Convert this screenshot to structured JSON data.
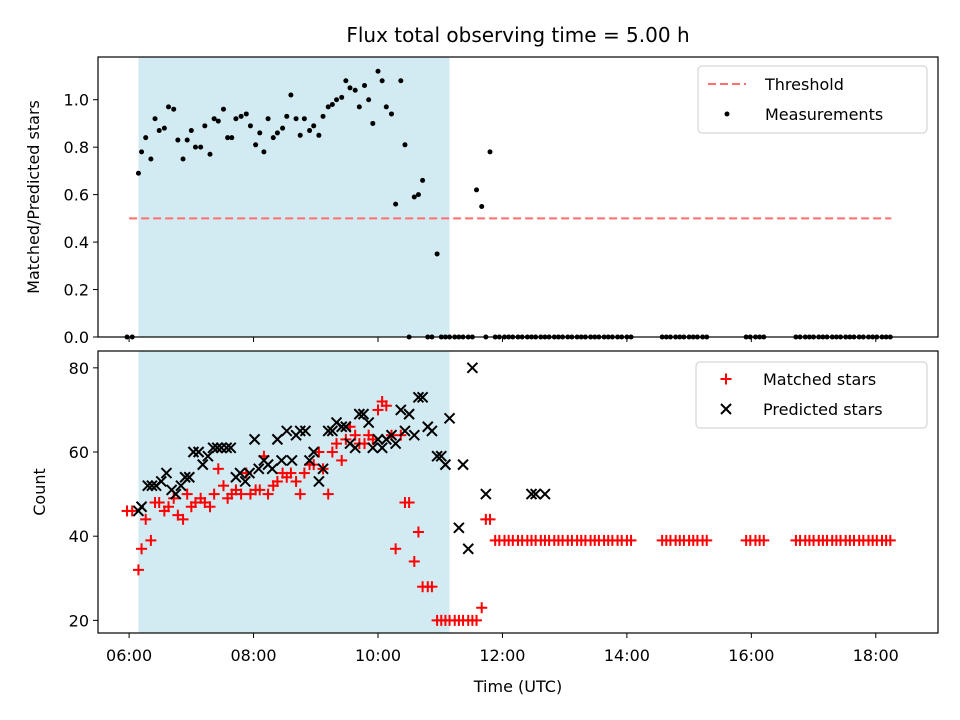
{
  "chart_data": [
    {
      "type": "scatter",
      "title": "Flux total observing time = 5.00 h",
      "xlabel": "",
      "ylabel": "Matched/Predicted stars",
      "xlim": [
        "05:30",
        "19:00"
      ],
      "ylim": [
        0,
        1.18
      ],
      "yticks": [
        0.0,
        0.2,
        0.4,
        0.6,
        0.8,
        1.0
      ],
      "xticks": [
        "06:00",
        "08:00",
        "10:00",
        "12:00",
        "14:00",
        "16:00",
        "18:00"
      ],
      "shaded_span": [
        "06:09",
        "11:09"
      ],
      "shaded_color": "#add8e6",
      "legend_position": "upper right",
      "threshold": {
        "name": "Threshold",
        "y": 0.5,
        "x_range": [
          "06:00",
          "18:15"
        ],
        "color": "#ff6f6f",
        "style": "dashed"
      },
      "series": [
        {
          "name": "Measurements",
          "color": "#000000",
          "marker": "dot",
          "x": [
            "05:58",
            "06:03",
            "06:09",
            "06:12",
            "06:16",
            "06:21",
            "06:25",
            "06:29",
            "06:34",
            "06:38",
            "06:43",
            "06:47",
            "06:52",
            "06:56",
            "07:00",
            "07:04",
            "07:09",
            "07:13",
            "07:18",
            "07:22",
            "07:26",
            "07:31",
            "07:35",
            "07:39",
            "07:43",
            "07:48",
            "07:53",
            "07:57",
            "08:02",
            "08:06",
            "08:10",
            "08:14",
            "08:19",
            "08:23",
            "08:28",
            "08:32",
            "08:36",
            "08:41",
            "08:45",
            "08:49",
            "08:54",
            "08:58",
            "09:03",
            "09:07",
            "09:12",
            "09:16",
            "09:20",
            "09:25",
            "09:29",
            "09:33",
            "09:38",
            "09:42",
            "09:47",
            "09:51",
            "09:55",
            "10:00",
            "10:04",
            "10:08",
            "10:13",
            "10:17",
            "10:22",
            "10:26",
            "10:30",
            "10:35",
            "10:39",
            "10:43",
            "10:48",
            "10:52",
            "10:57",
            "11:01",
            "11:05",
            "11:09",
            "11:14",
            "11:18",
            "11:22",
            "11:27",
            "11:31",
            "11:35",
            "11:40",
            "11:44",
            "11:48",
            "11:53",
            "11:57",
            "12:02",
            "12:06",
            "12:10",
            "12:15",
            "12:19",
            "12:24",
            "12:28",
            "12:32",
            "12:37",
            "12:41",
            "12:45",
            "12:50",
            "12:54",
            "12:58",
            "13:03",
            "13:07",
            "13:12",
            "13:16",
            "13:20",
            "13:25",
            "13:29",
            "13:33",
            "13:38",
            "13:42",
            "13:46",
            "13:51",
            "13:55",
            "14:00",
            "14:04",
            "14:34",
            "14:38",
            "14:42",
            "14:47",
            "14:51",
            "14:55",
            "15:00",
            "15:04",
            "15:08",
            "15:13",
            "15:17",
            "15:55",
            "15:59",
            "16:04",
            "16:08",
            "16:12",
            "16:43",
            "16:47",
            "16:52",
            "16:56",
            "17:00",
            "17:05",
            "17:09",
            "17:13",
            "17:18",
            "17:22",
            "17:26",
            "17:31",
            "17:35",
            "17:39",
            "17:44",
            "17:48",
            "17:53",
            "17:57",
            "18:01",
            "18:06",
            "18:10",
            "18:14"
          ],
          "y": [
            0.0,
            0.0,
            0.69,
            0.78,
            0.84,
            0.75,
            0.92,
            0.87,
            0.88,
            0.97,
            0.96,
            0.83,
            0.75,
            0.83,
            0.87,
            0.8,
            0.8,
            0.89,
            0.77,
            0.92,
            0.91,
            0.96,
            0.84,
            0.84,
            0.92,
            0.93,
            0.94,
            0.89,
            0.81,
            0.86,
            0.78,
            0.92,
            0.84,
            0.86,
            0.88,
            0.93,
            1.02,
            0.92,
            0.85,
            0.92,
            0.87,
            0.89,
            0.85,
            0.93,
            0.97,
            0.98,
            1.0,
            1.01,
            1.08,
            1.05,
            1.04,
            0.97,
            1.06,
            1.0,
            0.9,
            1.12,
            1.08,
            0.97,
            0.94,
            0.56,
            1.08,
            0.81,
            0.0,
            0.59,
            0.6,
            0.66,
            0.0,
            0.0,
            0.35,
            0.0,
            0.0,
            0.0,
            0.0,
            0.0,
            0.0,
            0.0,
            0.0,
            0.62,
            0.55,
            0.0,
            0.78,
            0.0,
            0.0,
            0.0,
            0.0,
            0.0,
            0.0,
            0.0,
            0.0,
            0.0,
            0.0,
            0.0,
            0.0,
            0.0,
            0.0,
            0.0,
            0.0,
            0.0,
            0.0,
            0.0,
            0.0,
            0.0,
            0.0,
            0.0,
            0.0,
            0.0,
            0.0,
            0.0,
            0.0,
            0.0,
            0.0,
            0.0,
            0.0,
            0.0,
            0.0,
            0.0,
            0.0,
            0.0,
            0.0,
            0.0,
            0.0,
            0.0,
            0.0,
            0.0,
            0.0,
            0.0,
            0.0,
            0.0,
            0.0,
            0.0,
            0.0,
            0.0,
            0.0,
            0.0,
            0.0,
            0.0,
            0.0,
            0.0,
            0.0,
            0.0,
            0.0,
            0.0,
            0.0,
            0.0,
            0.0,
            0.0,
            0.0,
            0.0,
            0.0,
            0.0
          ]
        }
      ]
    },
    {
      "type": "scatter",
      "title": "",
      "xlabel": "Time (UTC)",
      "ylabel": "Count",
      "xlim": [
        "05:30",
        "19:00"
      ],
      "ylim": [
        17,
        84
      ],
      "yticks": [
        20,
        40,
        60,
        80
      ],
      "xticks": [
        "06:00",
        "08:00",
        "10:00",
        "12:00",
        "14:00",
        "16:00",
        "18:00"
      ],
      "shaded_span": [
        "06:09",
        "11:09"
      ],
      "shaded_color": "#add8e6",
      "legend_position": "upper right",
      "series": [
        {
          "name": "Matched stars",
          "color": "#ff0000",
          "marker": "plus",
          "x": [
            "05:58",
            "06:03",
            "06:09",
            "06:12",
            "06:16",
            "06:21",
            "06:25",
            "06:29",
            "06:34",
            "06:38",
            "06:43",
            "06:47",
            "06:52",
            "06:56",
            "07:00",
            "07:04",
            "07:09",
            "07:13",
            "07:18",
            "07:22",
            "07:26",
            "07:31",
            "07:35",
            "07:39",
            "07:43",
            "07:48",
            "07:53",
            "07:57",
            "08:02",
            "08:06",
            "08:10",
            "08:14",
            "08:19",
            "08:23",
            "08:28",
            "08:32",
            "08:36",
            "08:41",
            "08:45",
            "08:49",
            "08:54",
            "08:58",
            "09:03",
            "09:07",
            "09:12",
            "09:16",
            "09:20",
            "09:25",
            "09:29",
            "09:33",
            "09:38",
            "09:42",
            "09:47",
            "09:51",
            "09:55",
            "10:00",
            "10:04",
            "10:08",
            "10:13",
            "10:17",
            "10:22",
            "10:26",
            "10:30",
            "10:35",
            "10:39",
            "10:43",
            "10:48",
            "10:52",
            "10:57",
            "11:01",
            "11:05",
            "11:09",
            "11:14",
            "11:18",
            "11:22",
            "11:27",
            "11:31",
            "11:35",
            "11:40",
            "11:44",
            "11:48",
            "11:53",
            "11:57",
            "12:02",
            "12:06",
            "12:10",
            "12:15",
            "12:19",
            "12:24",
            "12:28",
            "12:32",
            "12:37",
            "12:41",
            "12:45",
            "12:50",
            "12:54",
            "12:58",
            "13:03",
            "13:07",
            "13:12",
            "13:16",
            "13:20",
            "13:25",
            "13:29",
            "13:33",
            "13:38",
            "13:42",
            "13:46",
            "13:51",
            "13:55",
            "14:00",
            "14:04",
            "14:34",
            "14:38",
            "14:42",
            "14:47",
            "14:51",
            "14:55",
            "15:00",
            "15:04",
            "15:08",
            "15:13",
            "15:17",
            "15:55",
            "15:59",
            "16:04",
            "16:08",
            "16:12",
            "16:43",
            "16:47",
            "16:52",
            "16:56",
            "17:00",
            "17:05",
            "17:09",
            "17:13",
            "17:18",
            "17:22",
            "17:26",
            "17:31",
            "17:35",
            "17:39",
            "17:44",
            "17:48",
            "17:53",
            "17:57",
            "18:01",
            "18:06",
            "18:10",
            "18:14"
          ],
          "y": [
            46,
            46,
            32,
            37,
            44,
            39,
            48,
            48,
            46,
            47,
            49,
            45,
            44,
            50,
            47,
            48,
            49,
            48,
            47,
            50,
            56,
            52,
            49,
            50,
            51,
            50,
            55,
            50,
            51,
            51,
            59,
            50,
            52,
            53,
            55,
            54,
            55,
            53,
            50,
            55,
            57,
            57,
            60,
            56,
            50,
            60,
            62,
            58,
            63,
            66,
            64,
            62,
            62,
            64,
            63,
            70,
            72,
            71,
            64,
            37,
            64,
            48,
            48,
            34,
            41,
            28,
            28,
            28,
            20,
            20,
            20,
            20,
            20,
            20,
            20,
            20,
            20,
            20,
            23,
            44,
            44,
            39,
            39,
            39,
            39,
            39,
            39,
            39,
            39,
            39,
            39,
            39,
            39,
            39,
            39,
            39,
            39,
            39,
            39,
            39,
            39,
            39,
            39,
            39,
            39,
            39,
            39,
            39,
            39,
            39,
            39,
            39,
            39,
            39,
            39,
            39,
            39,
            39,
            39,
            39,
            39,
            39,
            39,
            39,
            39,
            39,
            39,
            39,
            39,
            39,
            39,
            39,
            39,
            39,
            39,
            39,
            39,
            39,
            39,
            39,
            39,
            39,
            39,
            39,
            39,
            39,
            39,
            39,
            39,
            39
          ]
        },
        {
          "name": "Predicted stars",
          "color": "#000000",
          "marker": "x",
          "x": [
            "06:09",
            "06:12",
            "06:18",
            "06:22",
            "06:26",
            "06:31",
            "06:36",
            "06:41",
            "06:45",
            "06:50",
            "06:54",
            "06:58",
            "07:02",
            "07:07",
            "07:11",
            "07:16",
            "07:21",
            "07:25",
            "07:29",
            "07:34",
            "07:38",
            "07:43",
            "07:47",
            "07:52",
            "07:56",
            "08:01",
            "08:05",
            "08:10",
            "08:14",
            "08:18",
            "08:23",
            "08:27",
            "08:32",
            "08:37",
            "08:41",
            "08:45",
            "08:50",
            "08:54",
            "08:58",
            "09:03",
            "09:07",
            "09:12",
            "09:16",
            "09:20",
            "09:25",
            "09:29",
            "09:33",
            "09:38",
            "09:42",
            "09:46",
            "09:51",
            "09:55",
            "10:00",
            "10:04",
            "10:08",
            "10:13",
            "10:17",
            "10:22",
            "10:26",
            "10:30",
            "10:35",
            "10:39",
            "10:43",
            "10:48",
            "10:52",
            "10:57",
            "11:01",
            "11:05",
            "11:09",
            "11:18",
            "11:22",
            "11:27",
            "11:31",
            "11:44",
            "12:28",
            "12:32",
            "12:41"
          ],
          "y": [
            46,
            47,
            52,
            52,
            52,
            53,
            55,
            51,
            50,
            52,
            54,
            54,
            60,
            60,
            57,
            59,
            61,
            61,
            61,
            61,
            61,
            54,
            55,
            53,
            55,
            63,
            56,
            58,
            57,
            56,
            63,
            58,
            65,
            58,
            64,
            65,
            65,
            58,
            60,
            53,
            56,
            65,
            65,
            67,
            66,
            66,
            62,
            61,
            69,
            69,
            67,
            61,
            63,
            61,
            63,
            64,
            62,
            70,
            65,
            69,
            64,
            73,
            73,
            66,
            65,
            59,
            59,
            57,
            68,
            42,
            57,
            37,
            80,
            50,
            50,
            50,
            50
          ]
        }
      ]
    }
  ]
}
